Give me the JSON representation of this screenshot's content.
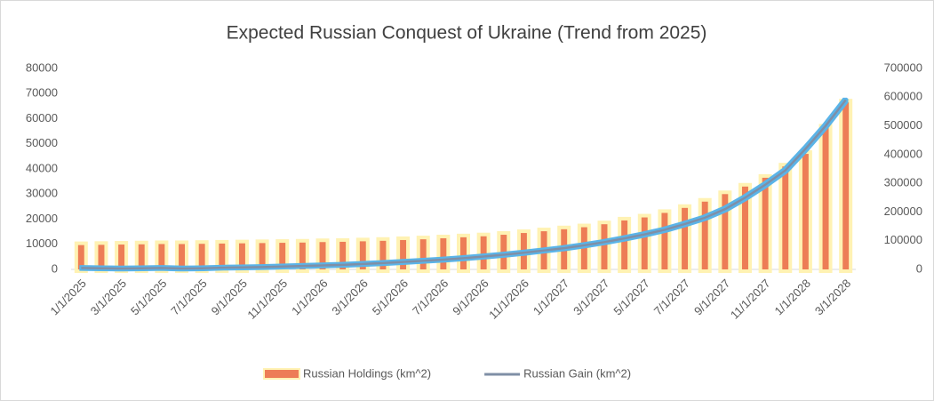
{
  "chart_data": {
    "type": "bar_line",
    "title": "Expected Russian Conquest of Ukraine (Trend from 2025)",
    "categories": [
      "1/1/2025",
      null,
      "3/1/2025",
      null,
      "5/1/2025",
      null,
      "7/1/2025",
      null,
      "9/1/2025",
      null,
      "11/1/2025",
      null,
      "1/1/2026",
      null,
      "3/1/2026",
      null,
      "5/1/2026",
      null,
      "7/1/2026",
      null,
      "9/1/2026",
      null,
      "11/1/2026",
      null,
      "1/1/2027",
      null,
      "3/1/2027",
      null,
      "5/1/2027",
      null,
      "7/1/2027",
      null,
      "9/1/2027",
      null,
      "11/1/2027",
      null,
      "1/1/2028",
      null,
      "3/1/2028"
    ],
    "series": [
      {
        "name": "Russian Holdings (km^2)",
        "color": "#ed7d57",
        "glow": "#fff2b3",
        "kind": "bar",
        "values": [
          9700,
          9800,
          9900,
          10000,
          10100,
          10100,
          10200,
          10300,
          10400,
          10500,
          10600,
          10700,
          10900,
          11000,
          11200,
          11400,
          11700,
          12000,
          12400,
          12800,
          13200,
          13800,
          14500,
          15200,
          16000,
          16800,
          18000,
          19500,
          20700,
          22500,
          24500,
          27000,
          30000,
          33000,
          36500,
          41000,
          46000,
          56500,
          66500
        ]
      },
      {
        "name": "Russian Gain (km^2)",
        "color": "#7f8fa6",
        "glow": "#5ab4e8",
        "kind": "line",
        "axis": "y2",
        "values": [
          5000,
          4000,
          3000,
          4000,
          5000,
          3000,
          4000,
          6000,
          7000,
          8000,
          10000,
          12000,
          14000,
          16000,
          19000,
          22000,
          26000,
          30000,
          34000,
          39000,
          45000,
          51000,
          58000,
          66000,
          74000,
          84000,
          95000,
          108000,
          122000,
          138000,
          158000,
          180000,
          210000,
          250000,
          295000,
          345000,
          420000,
          500000,
          590000
        ]
      }
    ],
    "ylim": [
      0,
      80000
    ],
    "yticks": [
      0,
      10000,
      20000,
      30000,
      40000,
      50000,
      60000,
      70000,
      80000
    ],
    "y2lim": [
      0,
      700000
    ],
    "y2ticks": [
      0,
      100000,
      200000,
      300000,
      400000,
      500000,
      600000,
      700000
    ],
    "legend": "bottom"
  }
}
